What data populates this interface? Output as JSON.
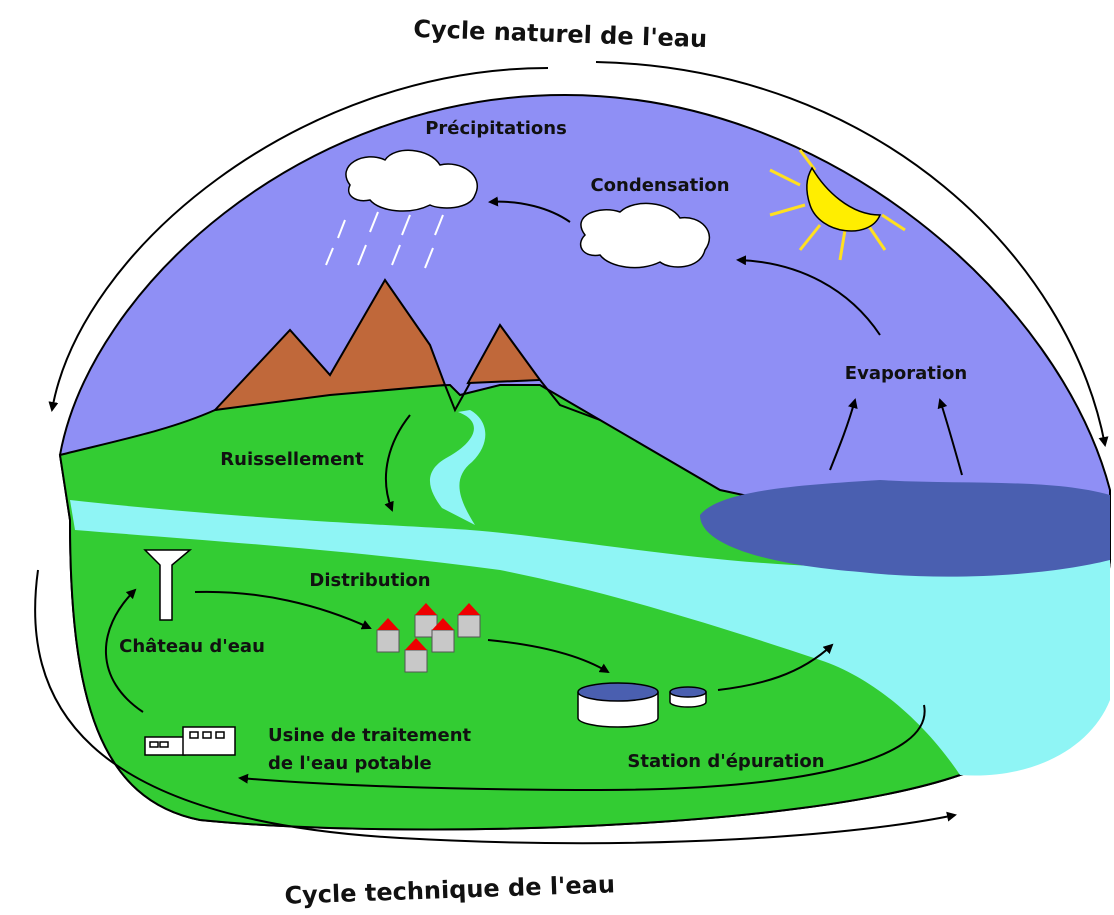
{
  "titles": {
    "natural": "Cycle naturel de l'eau",
    "technical": "Cycle technique de l'eau"
  },
  "labels": {
    "precipitations": "Précipitations",
    "condensation": "Condensation",
    "evaporation": "Evaporation",
    "runoff": "Ruissellement",
    "distribution": "Distribution",
    "water_tower": "Château d'eau",
    "treatment_plant": [
      "Usine de traitement",
      "de l'eau potable"
    ],
    "sewage_plant": "Station d'épuration"
  }
}
